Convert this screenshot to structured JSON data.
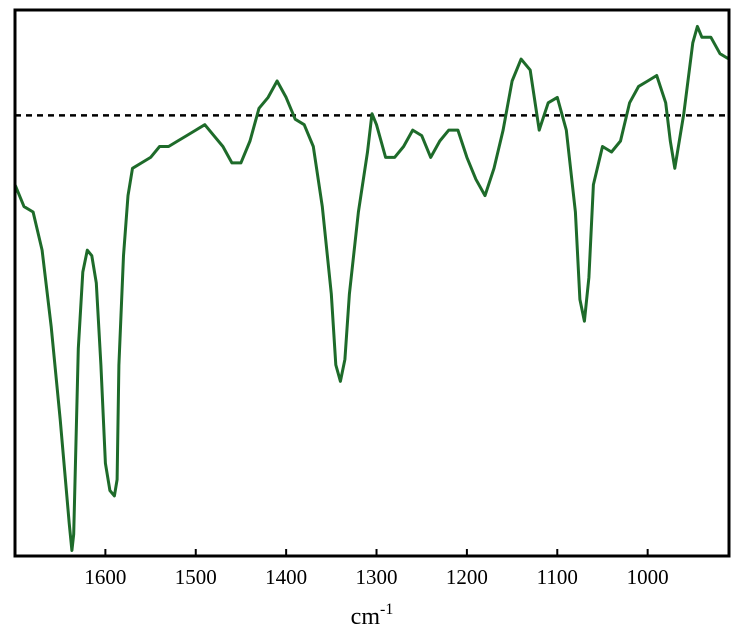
{
  "chart_data": {
    "type": "line",
    "title": "",
    "xlabel": "cm",
    "xlabel_superscript": "-1",
    "ylabel": "",
    "xlim": [
      1700,
      910
    ],
    "ylim": [
      0,
      1
    ],
    "x_reversed": true,
    "grid": false,
    "legend": "none",
    "x_ticks": [
      1600,
      1500,
      1400,
      1300,
      1200,
      1100,
      1000
    ],
    "x_tick_labels": [
      "1600",
      "1500",
      "1400",
      "1300",
      "1200",
      "1100",
      "1000"
    ],
    "colors": {
      "spectrum": "#1e6b2a",
      "reference": "#000000",
      "frame": "#000000"
    },
    "reference_line": {
      "y": 0.807,
      "style": "dashed"
    },
    "series": [
      {
        "x": [
          1700,
          1690,
          1680,
          1670,
          1660,
          1650,
          1640,
          1637,
          1635,
          1630,
          1625,
          1620,
          1615,
          1610,
          1605,
          1600,
          1595,
          1590,
          1587,
          1585,
          1580,
          1575,
          1570,
          1560,
          1550,
          1540,
          1530,
          1520,
          1510,
          1500,
          1490,
          1480,
          1470,
          1460,
          1450,
          1440,
          1430,
          1420,
          1410,
          1400,
          1390,
          1380,
          1370,
          1360,
          1350,
          1345,
          1340,
          1335,
          1330,
          1320,
          1310,
          1305,
          1300,
          1290,
          1280,
          1270,
          1260,
          1250,
          1240,
          1230,
          1220,
          1210,
          1200,
          1190,
          1180,
          1170,
          1160,
          1150,
          1140,
          1130,
          1120,
          1110,
          1100,
          1090,
          1080,
          1075,
          1070,
          1065,
          1060,
          1050,
          1040,
          1030,
          1020,
          1010,
          1000,
          990,
          980,
          975,
          970,
          960,
          950,
          945,
          940,
          930,
          920,
          910
        ],
        "y": [
          0.68,
          0.64,
          0.63,
          0.56,
          0.42,
          0.25,
          0.06,
          0.01,
          0.04,
          0.38,
          0.52,
          0.56,
          0.55,
          0.5,
          0.35,
          0.17,
          0.12,
          0.11,
          0.14,
          0.35,
          0.55,
          0.66,
          0.71,
          0.72,
          0.73,
          0.75,
          0.75,
          0.76,
          0.77,
          0.78,
          0.79,
          0.77,
          0.75,
          0.72,
          0.72,
          0.76,
          0.82,
          0.84,
          0.87,
          0.84,
          0.8,
          0.79,
          0.75,
          0.64,
          0.48,
          0.35,
          0.32,
          0.36,
          0.48,
          0.63,
          0.74,
          0.81,
          0.79,
          0.73,
          0.73,
          0.75,
          0.78,
          0.77,
          0.73,
          0.76,
          0.78,
          0.78,
          0.73,
          0.69,
          0.66,
          0.71,
          0.78,
          0.87,
          0.91,
          0.89,
          0.78,
          0.83,
          0.84,
          0.78,
          0.63,
          0.47,
          0.43,
          0.51,
          0.68,
          0.75,
          0.74,
          0.76,
          0.83,
          0.86,
          0.87,
          0.88,
          0.83,
          0.76,
          0.71,
          0.81,
          0.94,
          0.97,
          0.95,
          0.95,
          0.92,
          0.91
        ]
      }
    ]
  }
}
